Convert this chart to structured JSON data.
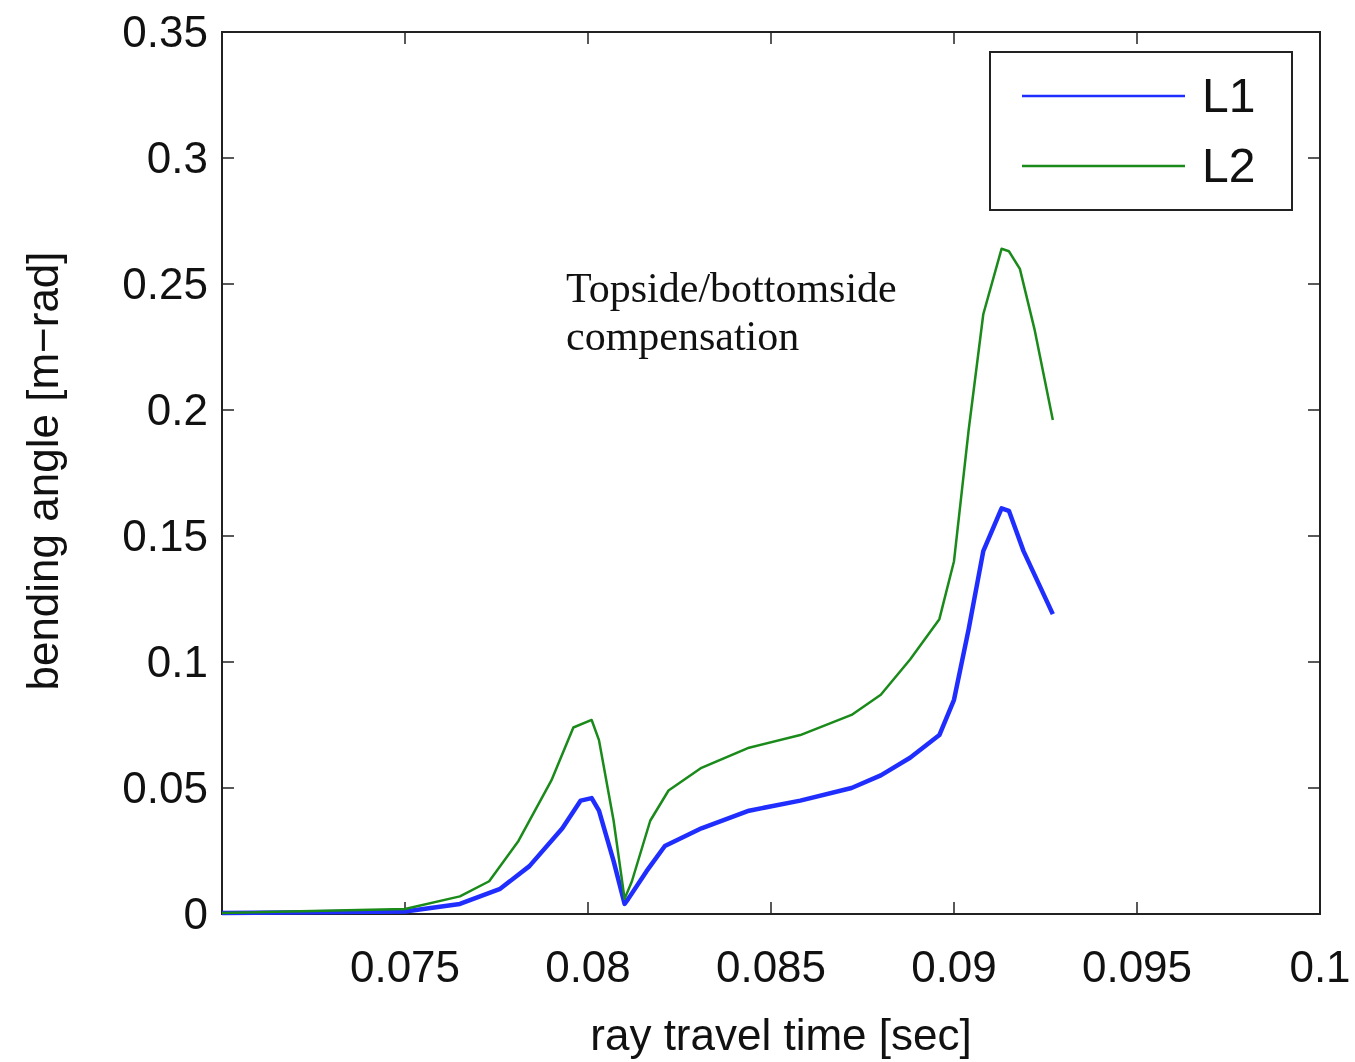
{
  "chart_data": {
    "type": "line",
    "xlabel": "ray travel time [sec]",
    "ylabel": "bending angle [m−rad]",
    "xlim": [
      0.07,
      0.1
    ],
    "xticks": [
      0.075,
      0.08,
      0.085,
      0.09,
      0.095,
      0.1
    ],
    "ylim": [
      0,
      0.35
    ],
    "yticks": [
      0,
      0.05,
      0.1,
      0.15,
      0.2,
      0.25,
      0.3,
      0.35
    ],
    "legend": "top right",
    "grid": false,
    "annotations": [
      "Topside/bottomside compensation"
    ],
    "series": [
      {
        "name": "L1",
        "color": "#1f2eff",
        "x": [
          0.07,
          0.075,
          0.0765,
          0.0776,
          0.0784,
          0.0793,
          0.0798,
          0.0801,
          0.0803,
          0.0807,
          0.081,
          0.0811,
          0.0816,
          0.0821,
          0.0831,
          0.0844,
          0.0858,
          0.0872,
          0.088,
          0.0888,
          0.0896,
          0.09,
          0.0904,
          0.0908,
          0.0913,
          0.0915,
          0.0919,
          0.0927
        ],
        "values": [
          0.0004,
          0.001,
          0.004,
          0.01,
          0.019,
          0.034,
          0.045,
          0.046,
          0.041,
          0.021,
          0.004,
          0.006,
          0.017,
          0.027,
          0.034,
          0.041,
          0.045,
          0.05,
          0.055,
          0.062,
          0.071,
          0.085,
          0.113,
          0.144,
          0.161,
          0.16,
          0.144,
          0.119
        ]
      },
      {
        "name": "L2",
        "color": "#1a8a1a",
        "x": [
          0.07,
          0.075,
          0.0765,
          0.0773,
          0.0781,
          0.079,
          0.0796,
          0.0801,
          0.0803,
          0.0807,
          0.081,
          0.0812,
          0.0817,
          0.0822,
          0.0831,
          0.0844,
          0.0858,
          0.0872,
          0.088,
          0.0888,
          0.0896,
          0.09,
          0.0904,
          0.0908,
          0.0913,
          0.0915,
          0.0918,
          0.0922,
          0.0927
        ],
        "values": [
          0.0004,
          0.002,
          0.007,
          0.013,
          0.029,
          0.053,
          0.074,
          0.077,
          0.069,
          0.037,
          0.006,
          0.013,
          0.037,
          0.049,
          0.058,
          0.066,
          0.071,
          0.079,
          0.087,
          0.101,
          0.117,
          0.14,
          0.192,
          0.238,
          0.264,
          0.263,
          0.256,
          0.232,
          0.196
        ]
      }
    ]
  }
}
